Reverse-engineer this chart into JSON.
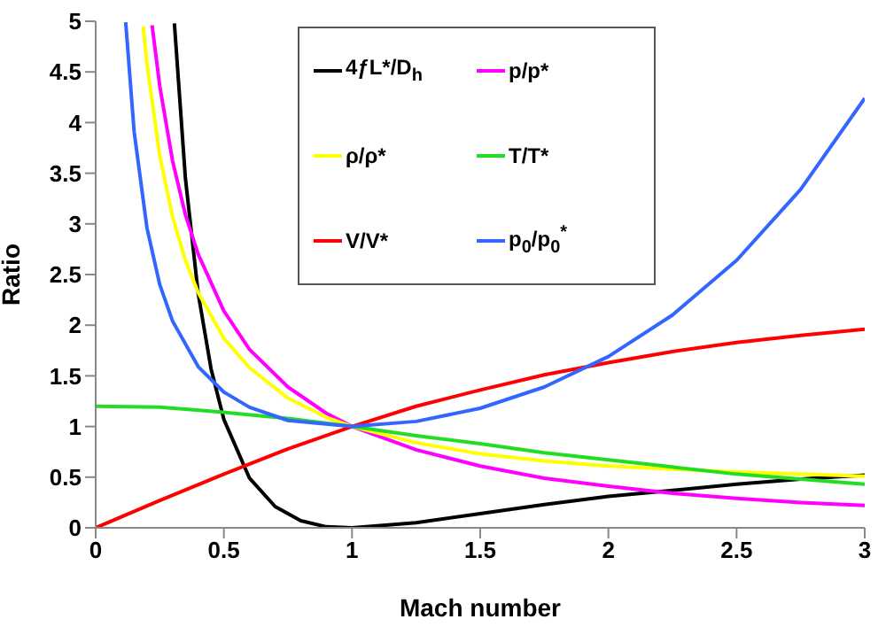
{
  "chart_data": {
    "type": "line",
    "xlabel": "Mach number",
    "ylabel": "Ratio",
    "xlim": [
      0,
      3
    ],
    "ylim": [
      0,
      5
    ],
    "xticks": [
      0,
      0.5,
      1,
      1.5,
      2,
      2.5,
      3
    ],
    "yticks": [
      0,
      0.5,
      1,
      1.5,
      2,
      2.5,
      3,
      3.5,
      4,
      4.5,
      5
    ],
    "grid": false,
    "legend": "top",
    "marker": "none",
    "line_style": "solid",
    "series": [
      {
        "name": "4ƒL*/D$_{h}$",
        "color": "#000000",
        "x": [
          0.307,
          0.35,
          0.4,
          0.45,
          0.5,
          0.6,
          0.7,
          0.8,
          0.9,
          1,
          1.25,
          1.5,
          1.75,
          2,
          2.25,
          2.5,
          2.75,
          3
        ],
        "values": [
          4.98,
          3.45,
          2.31,
          1.57,
          1.07,
          0.49,
          0.21,
          0.07,
          0.01,
          0,
          0.05,
          0.14,
          0.23,
          0.31,
          0.37,
          0.43,
          0.48,
          0.52
        ]
      },
      {
        "name": "p/p*",
        "color": "#ff00ff",
        "x": [
          0.22,
          0.25,
          0.3,
          0.35,
          0.4,
          0.5,
          0.6,
          0.75,
          0.9,
          1,
          1.25,
          1.5,
          1.75,
          2,
          2.25,
          2.5,
          2.75,
          3
        ],
        "values": [
          4.96,
          4.36,
          3.62,
          3.09,
          2.7,
          2.14,
          1.76,
          1.39,
          1.13,
          1,
          0.77,
          0.61,
          0.49,
          0.41,
          0.34,
          0.29,
          0.25,
          0.22
        ]
      },
      {
        "name": "ρ/ρ*",
        "color": "#ffff00",
        "x": [
          0.185,
          0.2,
          0.25,
          0.3,
          0.35,
          0.4,
          0.5,
          0.6,
          0.75,
          0.9,
          1,
          1.25,
          1.5,
          1.75,
          2,
          2.25,
          2.5,
          2.75,
          3
        ],
        "values": [
          4.95,
          4.58,
          3.67,
          3.07,
          2.64,
          2.32,
          1.87,
          1.58,
          1.28,
          1.09,
          1,
          0.84,
          0.73,
          0.66,
          0.61,
          0.58,
          0.55,
          0.53,
          0.51
        ]
      },
      {
        "name": "T/T*",
        "color": "#22dd22",
        "x": [
          0,
          0.25,
          0.5,
          0.75,
          1,
          1.25,
          1.5,
          1.75,
          2,
          2.25,
          2.5,
          2.75,
          3
        ],
        "values": [
          1.2,
          1.19,
          1.14,
          1.08,
          1,
          0.91,
          0.83,
          0.74,
          0.67,
          0.6,
          0.53,
          0.48,
          0.43
        ]
      },
      {
        "name": "V/V*",
        "color": "#ff0000",
        "x": [
          0,
          0.25,
          0.5,
          0.75,
          1,
          1.25,
          1.5,
          1.75,
          2,
          2.25,
          2.5,
          2.75,
          3
        ],
        "values": [
          0,
          0.27,
          0.53,
          0.78,
          1,
          1.2,
          1.36,
          1.51,
          1.63,
          1.74,
          1.83,
          1.9,
          1.96
        ]
      },
      {
        "name": "p$_{0}$/p$_{0}$$^{*}$",
        "color": "#3366ff",
        "x": [
          0.117,
          0.15,
          0.2,
          0.25,
          0.3,
          0.4,
          0.5,
          0.6,
          0.75,
          1,
          1.25,
          1.5,
          1.75,
          2,
          2.25,
          2.5,
          2.75,
          3
        ],
        "values": [
          4.99,
          3.91,
          2.96,
          2.4,
          2.04,
          1.59,
          1.34,
          1.19,
          1.06,
          1,
          1.05,
          1.18,
          1.39,
          1.69,
          2.1,
          2.64,
          3.34,
          4.24
        ]
      }
    ]
  }
}
